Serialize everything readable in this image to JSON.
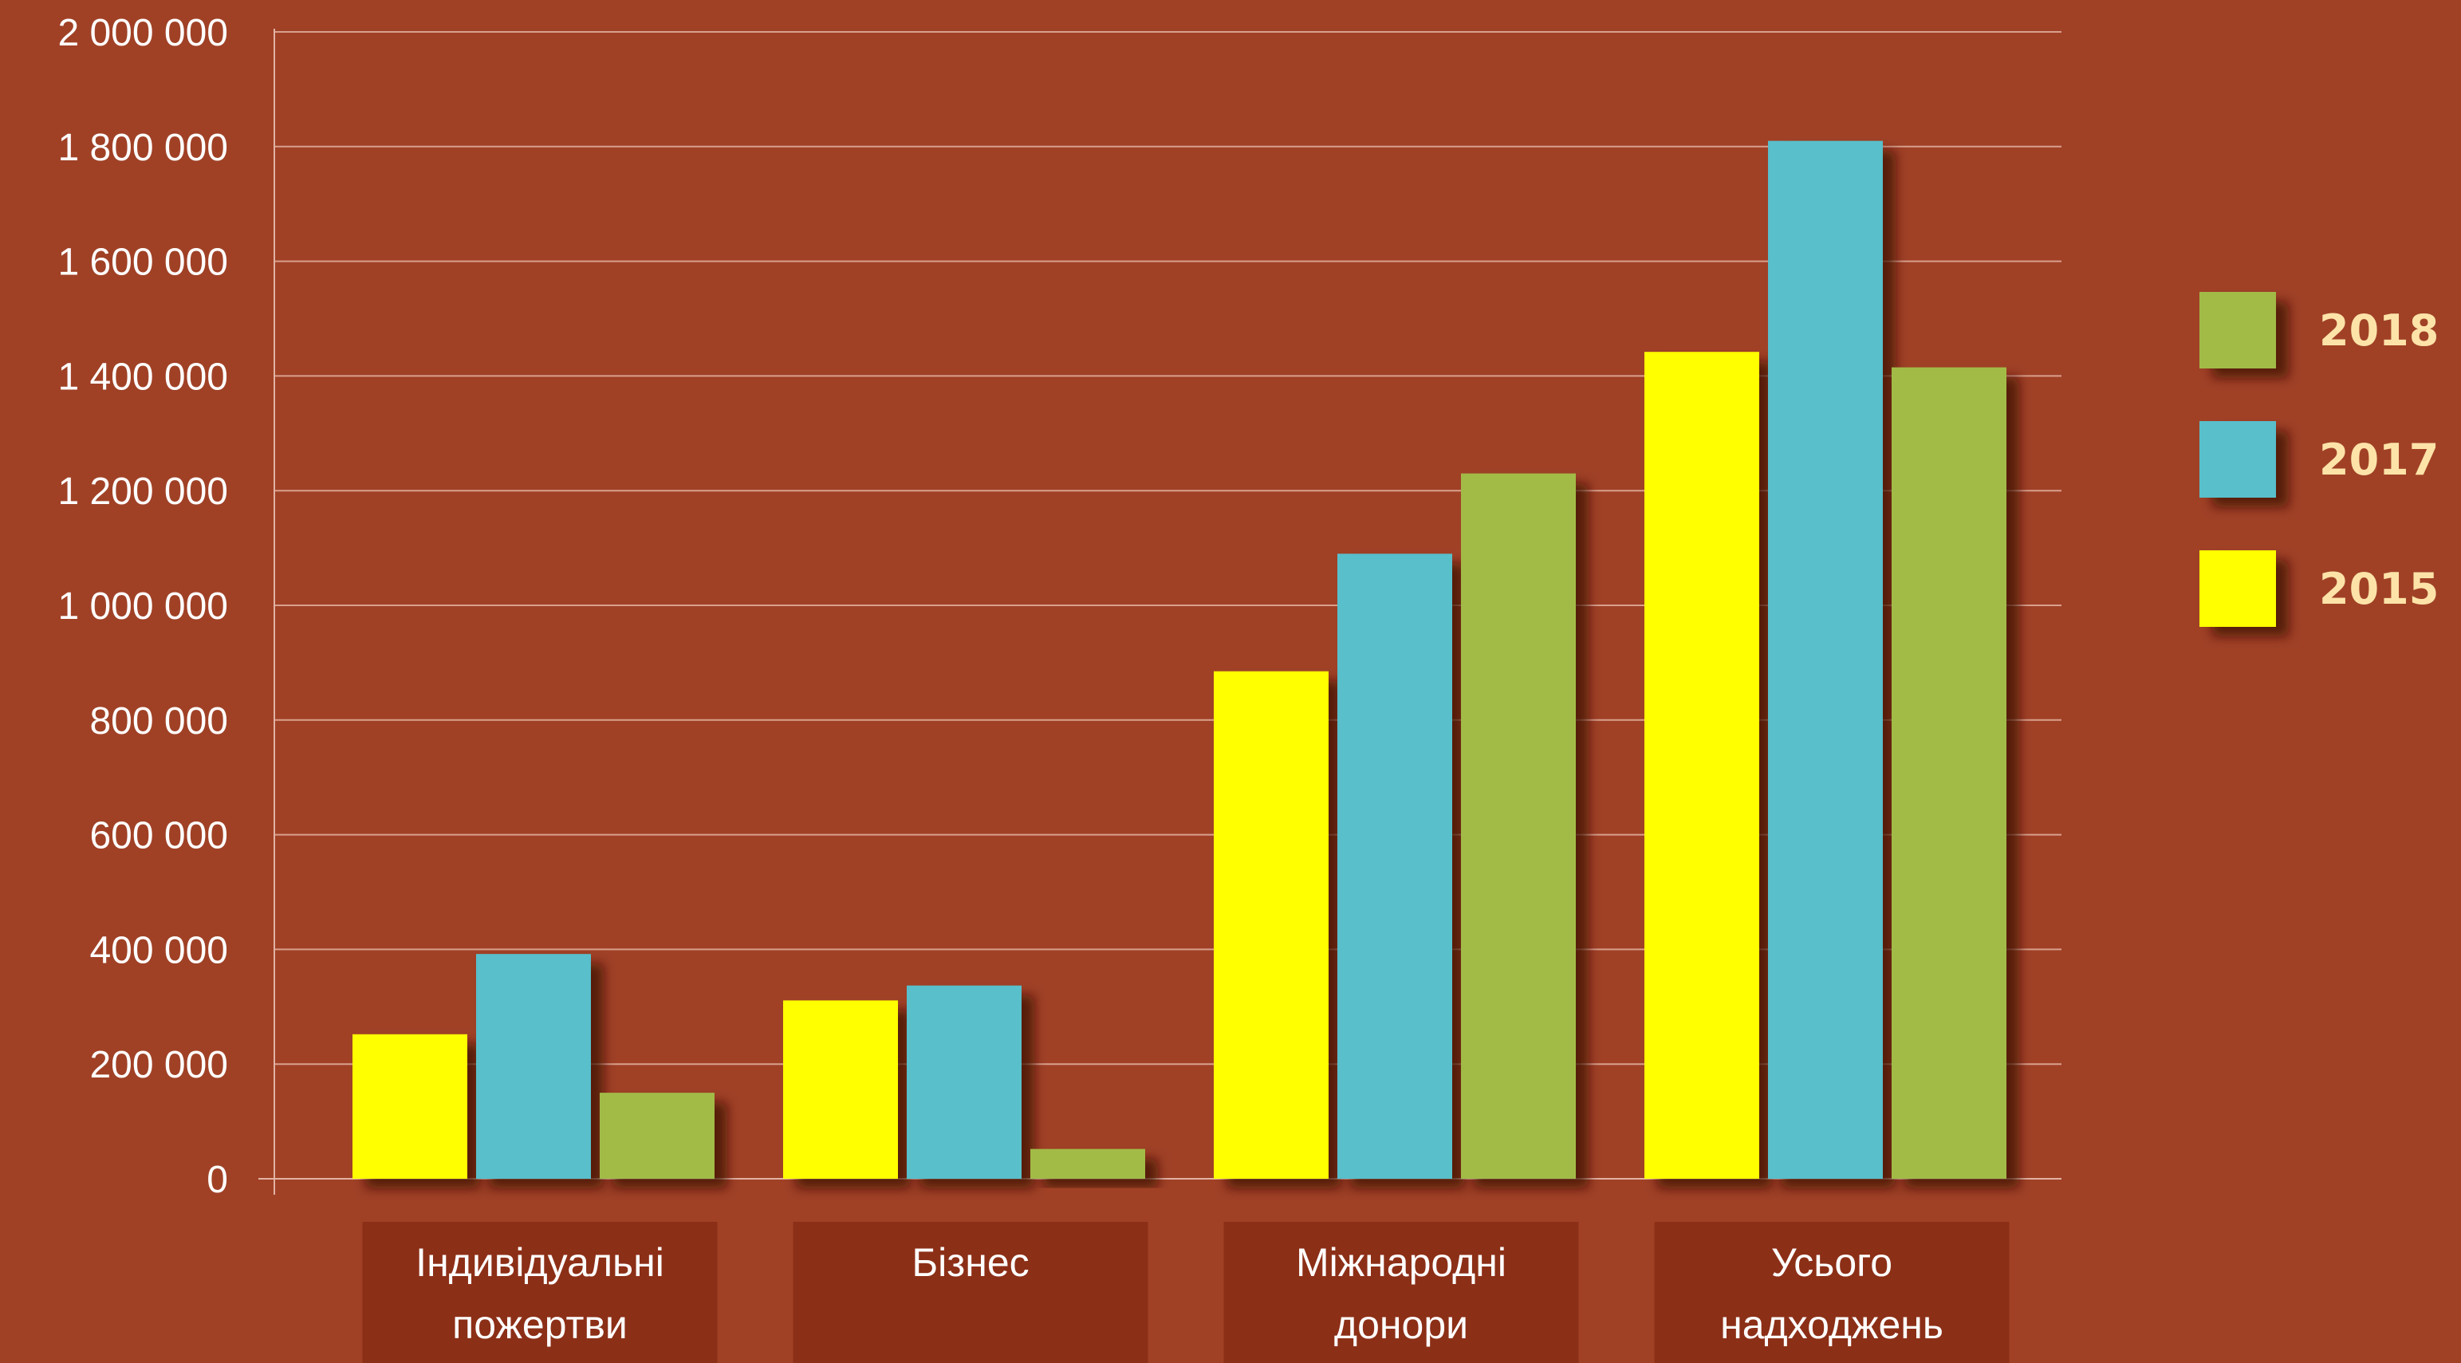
{
  "chart_data": {
    "type": "bar",
    "title": "",
    "xlabel": "",
    "ylabel": "",
    "ylim": [
      0,
      2000000
    ],
    "yticks": [
      0,
      200000,
      400000,
      600000,
      800000,
      1000000,
      1200000,
      1400000,
      1600000,
      1800000,
      2000000
    ],
    "ytick_labels": [
      "0",
      "200 000",
      "400 000",
      "600 000",
      "800 000",
      "1 000 000",
      "1 200 000",
      "1 400 000",
      "1 600 000",
      "1 800 000",
      "2 000 000"
    ],
    "categories": [
      [
        "Індивідуальні",
        "пожертви"
      ],
      [
        "Бізнес"
      ],
      [
        "Міжнародні",
        "донори"
      ],
      [
        "Усього",
        "надходжень"
      ]
    ],
    "series": [
      {
        "name": "2015",
        "color": "#ffff00",
        "values": [
          252000,
          311000,
          885000,
          1442000
        ]
      },
      {
        "name": "2017",
        "color": "#58bfcb",
        "values": [
          392000,
          337000,
          1090000,
          1810000
        ]
      },
      {
        "name": "2018",
        "color": "#a2bb46",
        "values": [
          150000,
          52000,
          1230000,
          1415000
        ]
      }
    ],
    "legend_order": [
      "2018",
      "2017",
      "2015"
    ],
    "legend_position": "right",
    "grid": true,
    "colors": {
      "background": "#a04126",
      "gridline": "#d9a08e",
      "axis": "#e2b3a4",
      "category_box": "#8c2f17",
      "text": "#ffffff",
      "legend_text": "#fde3a8"
    }
  }
}
